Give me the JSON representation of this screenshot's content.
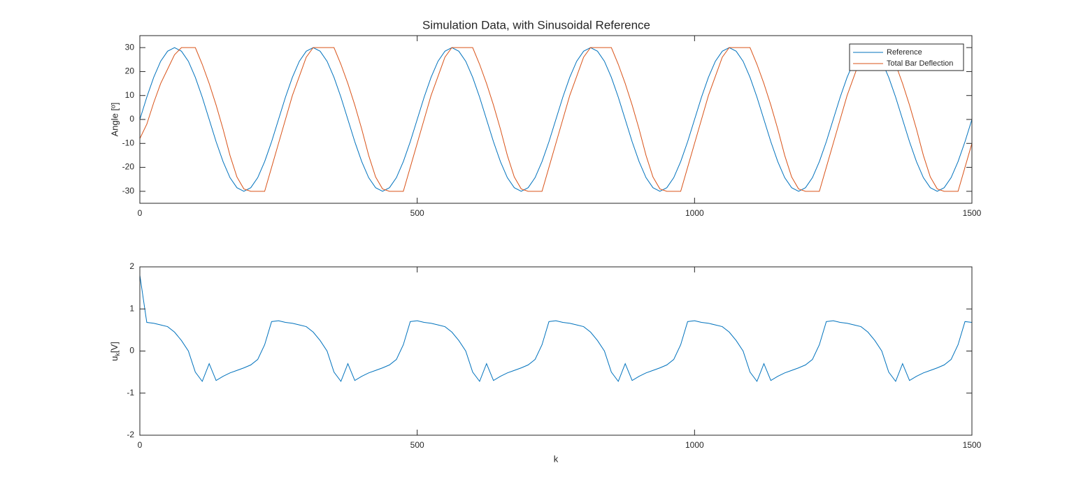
{
  "chart_data": [
    {
      "type": "line",
      "title": "Simulation Data, with Sinusoidal Reference",
      "ylabel": "Angle [º]",
      "xlim": [
        0,
        1500
      ],
      "ylim": [
        -35,
        35
      ],
      "xticks": [
        0,
        500,
        1000,
        1500
      ],
      "yticks": [
        -30,
        -20,
        -10,
        0,
        10,
        20,
        30
      ],
      "legend": "northeast",
      "x": [
        0,
        12.5,
        25,
        37.5,
        50,
        62.5,
        75,
        87.5,
        100,
        112.5,
        125,
        137.5,
        150,
        162.5,
        175,
        187.5,
        200,
        212.5,
        225,
        237.5,
        250,
        262.5,
        275,
        287.5,
        300,
        312.5,
        325,
        337.5,
        350,
        362.5,
        375,
        387.5,
        400,
        412.5,
        425,
        437.5,
        450,
        462.5,
        475,
        487.5,
        500,
        512.5,
        525,
        537.5,
        550,
        562.5,
        575,
        587.5,
        600,
        612.5,
        625,
        637.5,
        650,
        662.5,
        675,
        687.5,
        700,
        712.5,
        725,
        737.5,
        750,
        762.5,
        775,
        787.5,
        800,
        812.5,
        825,
        837.5,
        850,
        862.5,
        875,
        887.5,
        900,
        912.5,
        925,
        937.5,
        950,
        962.5,
        975,
        987.5,
        1000,
        1012.5,
        1025,
        1037.5,
        1050,
        1062.5,
        1075,
        1087.5,
        1100,
        1112.5,
        1125,
        1137.5,
        1150,
        1162.5,
        1175,
        1187.5,
        1200,
        1212.5,
        1225,
        1237.5,
        1250,
        1262.5,
        1275,
        1287.5,
        1300,
        1312.5,
        1325,
        1337.5,
        1350,
        1362.5,
        1375,
        1387.5,
        1400,
        1412.5,
        1425,
        1437.5,
        1450,
        1462.5,
        1475,
        1487.5,
        1500
      ],
      "series": [
        {
          "name": "Reference",
          "color": "#0072bd",
          "values": [
            0,
            9.3,
            17.6,
            24.3,
            28.5,
            30,
            28.5,
            24.3,
            17.6,
            9.3,
            0,
            -9.3,
            -17.6,
            -24.3,
            -28.5,
            -30,
            -28.5,
            -24.3,
            -17.6,
            -9.3,
            0,
            9.3,
            17.6,
            24.3,
            28.5,
            30,
            28.5,
            24.3,
            17.6,
            9.3,
            0,
            -9.3,
            -17.6,
            -24.3,
            -28.5,
            -30,
            -28.5,
            -24.3,
            -17.6,
            -9.3,
            0,
            9.3,
            17.6,
            24.3,
            28.5,
            30,
            28.5,
            24.3,
            17.6,
            9.3,
            0,
            -9.3,
            -17.6,
            -24.3,
            -28.5,
            -30,
            -28.5,
            -24.3,
            -17.6,
            -9.3,
            0,
            9.3,
            17.6,
            24.3,
            28.5,
            30,
            28.5,
            24.3,
            17.6,
            9.3,
            0,
            -9.3,
            -17.6,
            -24.3,
            -28.5,
            -30,
            -28.5,
            -24.3,
            -17.6,
            -9.3,
            0,
            9.3,
            17.6,
            24.3,
            28.5,
            30,
            28.5,
            24.3,
            17.6,
            9.3,
            0,
            -9.3,
            -17.6,
            -24.3,
            -28.5,
            -30,
            -28.5,
            -24.3,
            -17.6,
            -9.3,
            0,
            9.3,
            17.6,
            24.3,
            28.5,
            30,
            28.5,
            24.3,
            17.6,
            9.3,
            0,
            -9.3,
            -17.6,
            -24.3,
            -28.5,
            -30,
            -28.5,
            -24.3,
            -17.6,
            -9.3,
            0
          ]
        },
        {
          "name": "Total Bar Deflection",
          "color": "#d95319",
          "values": [
            -8,
            -2,
            7,
            15,
            21,
            27,
            30,
            30,
            30,
            23,
            15,
            6,
            -4,
            -15,
            -24,
            -29,
            -30,
            -30,
            -30,
            -20,
            -10,
            0,
            10,
            18,
            26,
            30,
            30,
            30,
            30,
            23,
            15,
            6,
            -4,
            -15,
            -24,
            -29,
            -30,
            -30,
            -30,
            -20,
            -10,
            0,
            10,
            18,
            26,
            30,
            30,
            30,
            30,
            23,
            15,
            6,
            -4,
            -15,
            -24,
            -29,
            -30,
            -30,
            -30,
            -20,
            -10,
            0,
            10,
            18,
            26,
            30,
            30,
            30,
            30,
            23,
            15,
            6,
            -4,
            -15,
            -24,
            -29,
            -30,
            -30,
            -30,
            -20,
            -10,
            0,
            10,
            18,
            26,
            30,
            30,
            30,
            30,
            23,
            15,
            6,
            -4,
            -15,
            -24,
            -29,
            -30,
            -30,
            -30,
            -20,
            -10,
            0,
            10,
            18,
            26,
            30,
            30,
            30,
            30,
            23,
            15,
            6,
            -4,
            -15,
            -24,
            -29,
            -30,
            -30,
            -30,
            -20,
            -10
          ]
        }
      ]
    },
    {
      "type": "line",
      "ylabel": {
        "base": "u",
        "sub": "k",
        "unit": "[V]"
      },
      "xlabel": "k",
      "xlim": [
        0,
        1500
      ],
      "ylim": [
        -2,
        2
      ],
      "xticks": [
        0,
        500,
        1000,
        1500
      ],
      "yticks": [
        -2,
        -1,
        0,
        1,
        2
      ],
      "x": [
        0,
        12.5,
        25,
        37.5,
        50,
        62.5,
        75,
        87.5,
        100,
        112.5,
        125,
        137.5,
        150,
        162.5,
        175,
        187.5,
        200,
        212.5,
        225,
        237.5,
        250,
        262.5,
        275,
        287.5,
        300,
        312.5,
        325,
        337.5,
        350,
        362.5,
        375,
        387.5,
        400,
        412.5,
        425,
        437.5,
        450,
        462.5,
        475,
        487.5,
        500,
        512.5,
        525,
        537.5,
        550,
        562.5,
        575,
        587.5,
        600,
        612.5,
        625,
        637.5,
        650,
        662.5,
        675,
        687.5,
        700,
        712.5,
        725,
        737.5,
        750,
        762.5,
        775,
        787.5,
        800,
        812.5,
        825,
        837.5,
        850,
        862.5,
        875,
        887.5,
        900,
        912.5,
        925,
        937.5,
        950,
        962.5,
        975,
        987.5,
        1000,
        1012.5,
        1025,
        1037.5,
        1050,
        1062.5,
        1075,
        1087.5,
        1100,
        1112.5,
        1125,
        1137.5,
        1150,
        1162.5,
        1175,
        1187.5,
        1200,
        1212.5,
        1225,
        1237.5,
        1250,
        1262.5,
        1275,
        1287.5,
        1300,
        1312.5,
        1325,
        1337.5,
        1350,
        1362.5,
        1375,
        1387.5,
        1400,
        1412.5,
        1425,
        1437.5,
        1450,
        1462.5,
        1475,
        1487.5,
        1500
      ],
      "series": [
        {
          "color": "#0072bd",
          "values": [
            1.8,
            0.68,
            0.66,
            0.62,
            0.58,
            0.45,
            0.25,
            0,
            -0.5,
            -0.72,
            -0.3,
            -0.7,
            -0.6,
            -0.52,
            -0.46,
            -0.4,
            -0.33,
            -0.2,
            0.15,
            0.7,
            0.72,
            0.68,
            0.66,
            0.62,
            0.58,
            0.45,
            0.25,
            0,
            -0.5,
            -0.72,
            -0.3,
            -0.7,
            -0.6,
            -0.52,
            -0.46,
            -0.4,
            -0.33,
            -0.2,
            0.15,
            0.7,
            0.72,
            0.68,
            0.66,
            0.62,
            0.58,
            0.45,
            0.25,
            0,
            -0.5,
            -0.72,
            -0.3,
            -0.7,
            -0.6,
            -0.52,
            -0.46,
            -0.4,
            -0.33,
            -0.2,
            0.15,
            0.7,
            0.72,
            0.68,
            0.66,
            0.62,
            0.58,
            0.45,
            0.25,
            0,
            -0.5,
            -0.72,
            -0.3,
            -0.7,
            -0.6,
            -0.52,
            -0.46,
            -0.4,
            -0.33,
            -0.2,
            0.15,
            0.7,
            0.72,
            0.68,
            0.66,
            0.62,
            0.58,
            0.45,
            0.25,
            0,
            -0.5,
            -0.72,
            -0.3,
            -0.7,
            -0.6,
            -0.52,
            -0.46,
            -0.4,
            -0.33,
            -0.2,
            0.15,
            0.7,
            0.72,
            0.68,
            0.66,
            0.62,
            0.58,
            0.45,
            0.25,
            0,
            -0.5,
            -0.72,
            -0.3,
            -0.7,
            -0.6,
            -0.52,
            -0.46,
            -0.4,
            -0.33,
            -0.2,
            0.15,
            0.7,
            0.68
          ]
        }
      ]
    }
  ]
}
